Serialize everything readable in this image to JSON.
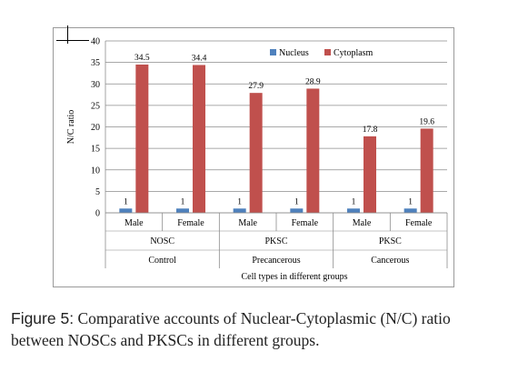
{
  "chart_data": {
    "type": "bar",
    "categories": [
      "Male",
      "Female",
      "Male",
      "Female",
      "Male",
      "Female"
    ],
    "subgroups": [
      "NOSC",
      "PKSC",
      "PKSC"
    ],
    "groups": [
      "Control",
      "Precancerous",
      "Cancerous"
    ],
    "series": [
      {
        "name": "Nucleus",
        "color": "#4f81bd",
        "values": [
          1,
          1,
          1,
          1,
          1,
          1
        ],
        "labels": [
          "1",
          "1",
          "1",
          "1",
          "1",
          "1"
        ]
      },
      {
        "name": "Cytoplasm",
        "color": "#c0504d",
        "values": [
          34.5,
          34.4,
          27.9,
          28.9,
          17.8,
          19.6
        ],
        "labels": [
          "34.5",
          "34.4",
          "27.9",
          "28.9",
          "17.8",
          "19.6"
        ]
      }
    ],
    "ylabel": "N/C ratio",
    "xlabel": "Cell types in different groups",
    "ylim": [
      0,
      40
    ],
    "yticks": [
      "0",
      "5",
      "10",
      "15",
      "20",
      "25",
      "30",
      "35",
      "40"
    ],
    "grid": true,
    "legend": "top-right"
  },
  "caption": {
    "label": "Figure 5:",
    "text": " Comparative accounts of Nuclear-Cytoplasmic (N/C) ratio between NOSCs and PKSCs in different groups."
  }
}
